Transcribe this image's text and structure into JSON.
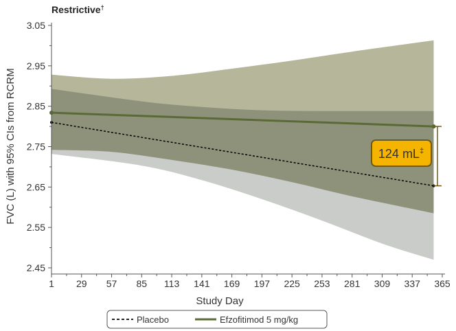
{
  "chart_data": {
    "type": "line",
    "title": "Restrictive",
    "title_superscript": "†",
    "xlabel": "Study Day",
    "ylabel": "FVC (L) with 95% CIs from RCRM",
    "xlim": [
      1,
      365
    ],
    "ylim": [
      2.45,
      3.05
    ],
    "xticks": [
      1,
      29,
      57,
      85,
      113,
      141,
      169,
      197,
      225,
      253,
      281,
      309,
      337,
      365
    ],
    "yticks": [
      2.45,
      2.55,
      2.65,
      2.75,
      2.85,
      2.95,
      3.05
    ],
    "ytick_labels": [
      "2.45",
      "2.55",
      "2.65",
      "2.75",
      "2.85",
      "2.95",
      "3.05"
    ],
    "grid": false,
    "legend": "bottom",
    "series": [
      {
        "name": "Placebo",
        "style": "dashed",
        "color": "#000000",
        "band_color": "#c9ccc8",
        "x": [
          1,
          357
        ],
        "values": [
          2.81,
          2.653
        ],
        "ci_lower": {
          "x": [
            1,
            85,
            141,
            197,
            253,
            309,
            357
          ],
          "values": [
            2.732,
            2.703,
            2.667,
            2.62,
            2.567,
            2.51,
            2.47
          ]
        },
        "ci_upper": {
          "x": [
            1,
            85,
            141,
            197,
            253,
            309,
            357
          ],
          "values": [
            2.893,
            2.862,
            2.848,
            2.84,
            2.838,
            2.838,
            2.838
          ]
        }
      },
      {
        "name": "Efzofitimod 5 mg/kg",
        "style": "solid",
        "color": "#5a6a36",
        "band_color": "#a9a98a",
        "x": [
          1,
          357
        ],
        "values": [
          2.834,
          2.8
        ],
        "ci_lower": {
          "x": [
            1,
            57,
            113,
            169,
            225,
            281,
            357
          ],
          "values": [
            2.742,
            2.737,
            2.717,
            2.693,
            2.662,
            2.627,
            2.585
          ]
        },
        "ci_upper": {
          "x": [
            1,
            57,
            113,
            169,
            225,
            281,
            357
          ],
          "values": [
            2.928,
            2.918,
            2.925,
            2.943,
            2.963,
            2.985,
            3.013
          ]
        }
      }
    ],
    "annotation": {
      "text": "124 mL",
      "superscript": "‡",
      "bracket_x": 365,
      "bracket_y": [
        2.653,
        2.8
      ],
      "color": "#f5b400",
      "border_color": "#6b5a1a"
    }
  }
}
